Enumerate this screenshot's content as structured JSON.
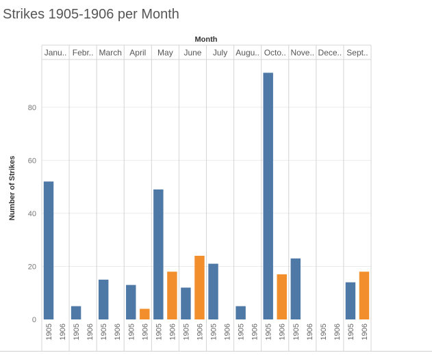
{
  "chart_data": {
    "type": "bar",
    "title": "Strikes 1905-1906 per Month",
    "column_header": "Month",
    "ylabel": "Number of Strikes",
    "ylim": [
      0,
      98
    ],
    "yticks": [
      0,
      20,
      40,
      60,
      80
    ],
    "grid": true,
    "categories": [
      "Janu..",
      "Febr..",
      "March",
      "April",
      "May",
      "June",
      "July",
      "Augu..",
      "Octo..",
      "Nove..",
      "Dece..",
      "Sept.."
    ],
    "subcategories": [
      "1905",
      "1906"
    ],
    "series": [
      {
        "name": "1905",
        "values": [
          52,
          5,
          15,
          13,
          49,
          12,
          21,
          5,
          93,
          23,
          0,
          14
        ]
      },
      {
        "name": "1906",
        "values": [
          0,
          0,
          0,
          4,
          18,
          24,
          0,
          0,
          17,
          0,
          0,
          18
        ]
      }
    ],
    "colors": {
      "1905": "#4e79a7",
      "1906": "#f28e2b"
    }
  }
}
